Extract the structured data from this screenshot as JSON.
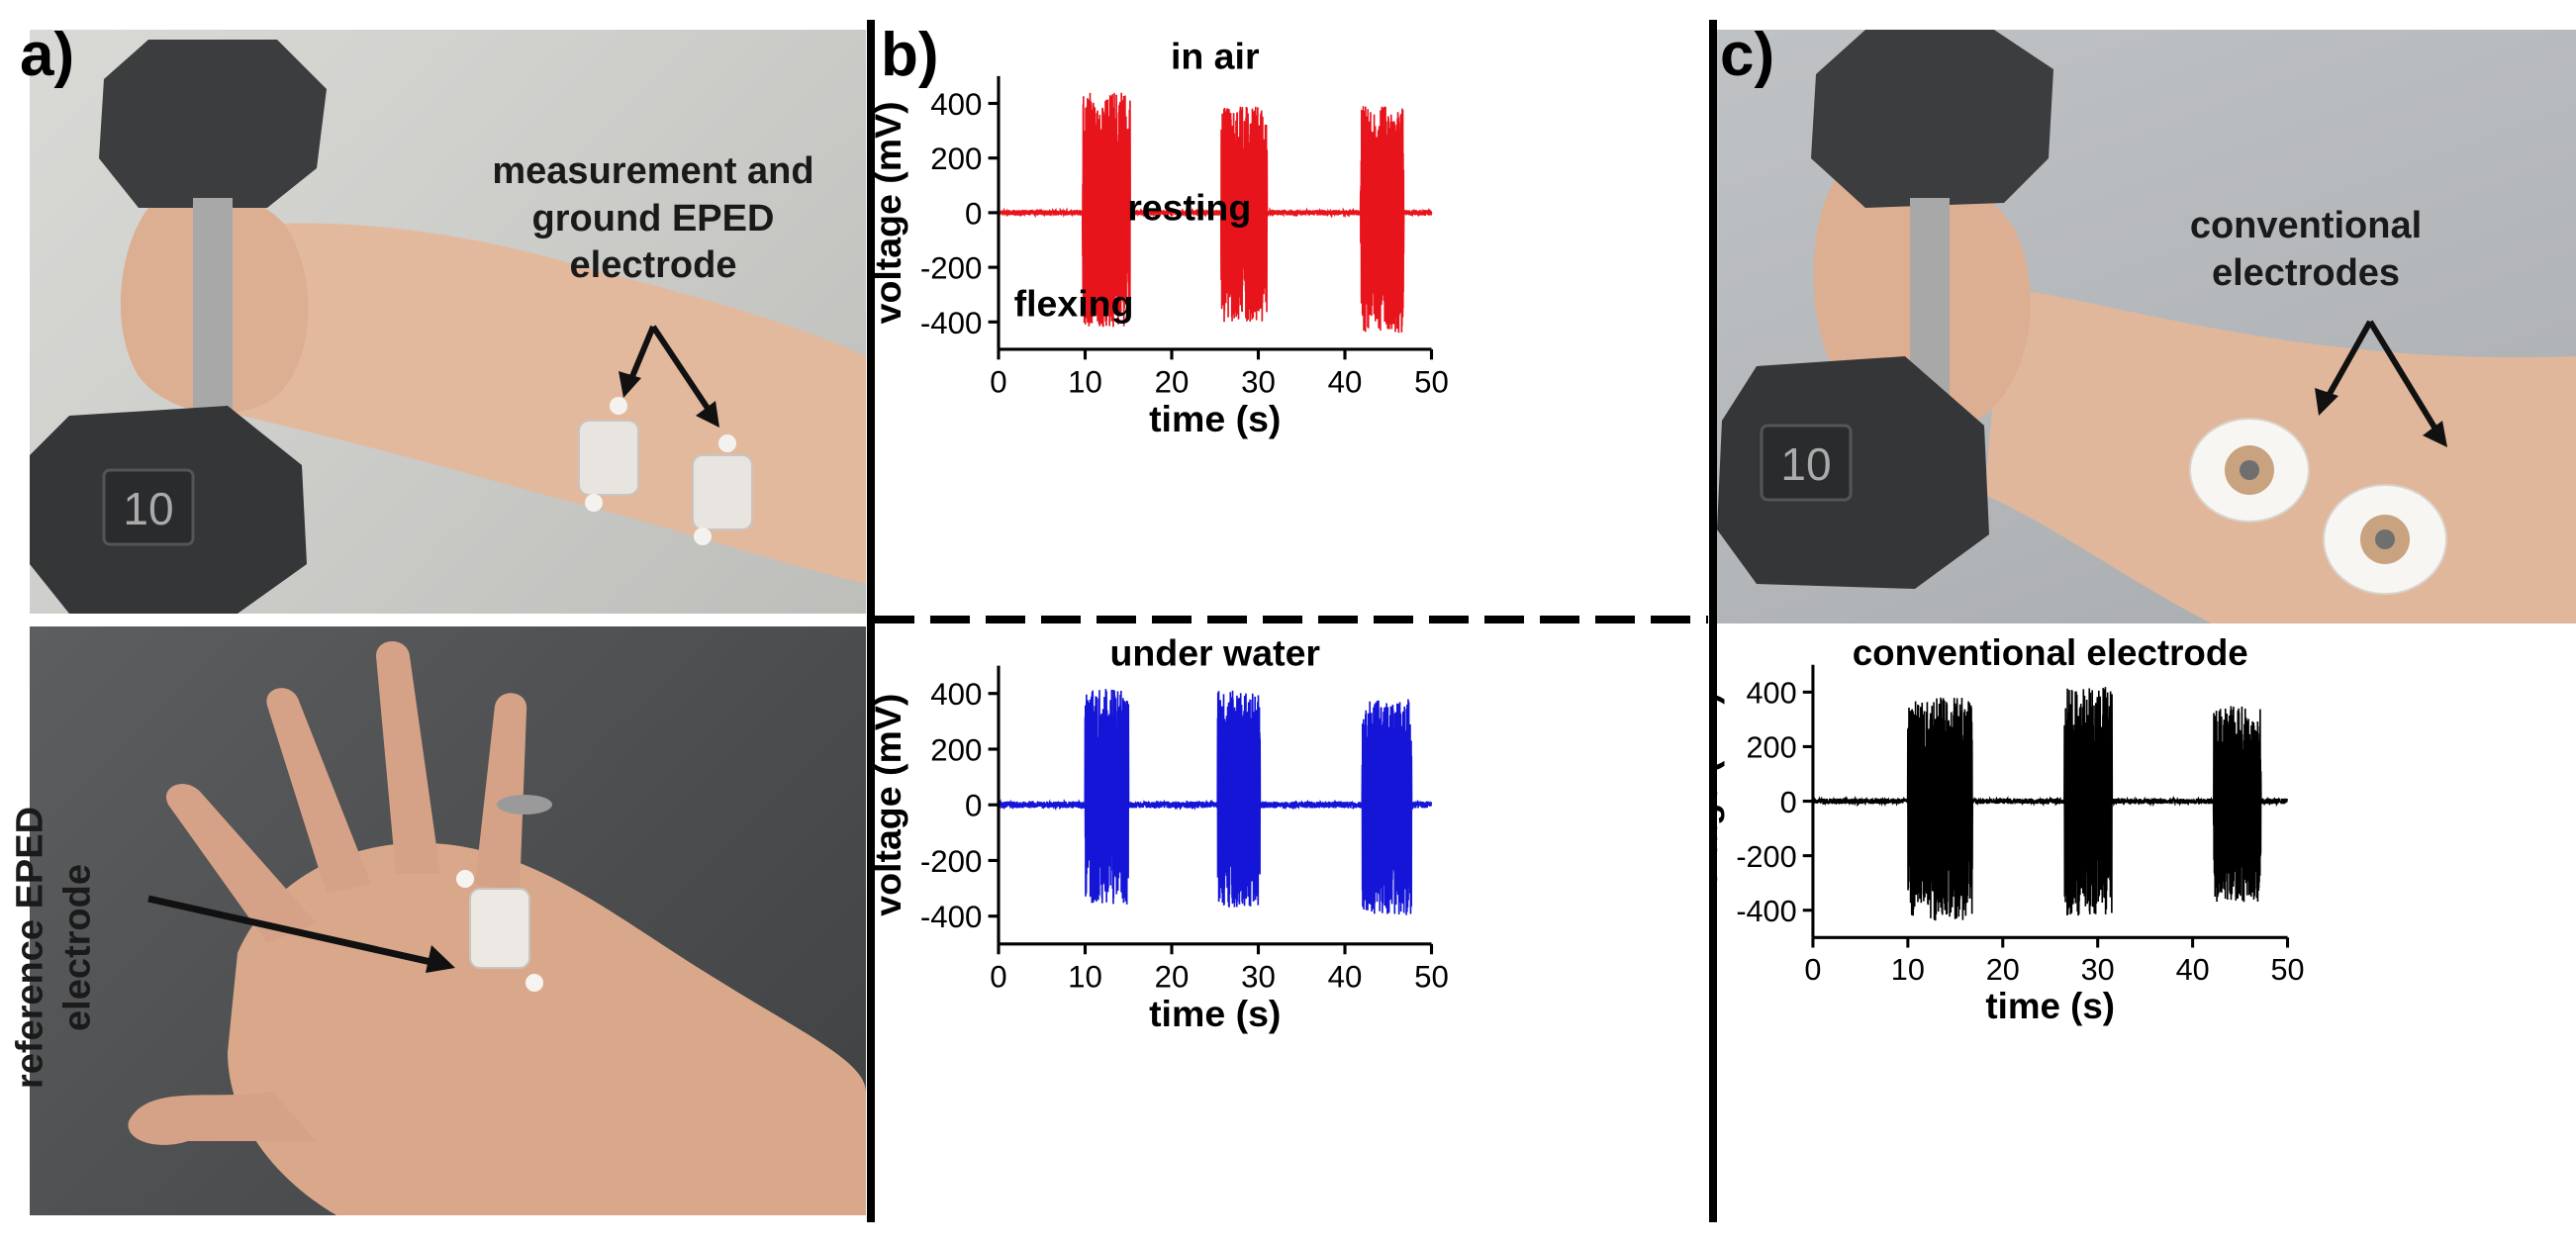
{
  "panels": {
    "a": {
      "letter": "a)",
      "annotation_top": [
        "measurement and",
        "ground EPED",
        "electrode"
      ],
      "annotation_bottom": "reference EPED electrode",
      "dumbbell_label": "10"
    },
    "b": {
      "letter": "b)"
    },
    "c": {
      "letter": "c)",
      "annotation_top": [
        "conventional",
        "electrodes"
      ],
      "dumbbell_label": "10"
    }
  },
  "chart_data": [
    {
      "type": "line",
      "title": "in air",
      "xlabel": "time (s)",
      "ylabel": "voltage (mV)",
      "xlim": [
        0,
        50
      ],
      "ylim": [
        -500,
        500
      ],
      "xticks": [
        0,
        10,
        20,
        30,
        40,
        50
      ],
      "yticks": [
        -400,
        -200,
        0,
        200,
        400
      ],
      "color": "#e8141c",
      "baseline_noise": 10,
      "bursts": [
        {
          "start": 9.7,
          "end": 15.2,
          "min": -420,
          "max": 440
        },
        {
          "start": 25.7,
          "end": 31.0,
          "min": -400,
          "max": 390
        },
        {
          "start": 41.8,
          "end": 46.8,
          "min": -440,
          "max": 390
        }
      ],
      "annotations": [
        "resting",
        "flexing"
      ]
    },
    {
      "type": "line",
      "title": "under water",
      "xlabel": "time (s)",
      "ylabel": "voltage (mV)",
      "xlim": [
        0,
        50
      ],
      "ylim": [
        -500,
        500
      ],
      "xticks": [
        0,
        10,
        20,
        30,
        40,
        50
      ],
      "yticks": [
        -400,
        -200,
        0,
        200,
        400
      ],
      "color": "#1515d8",
      "baseline_noise": 12,
      "bursts": [
        {
          "start": 10.0,
          "end": 15.0,
          "min": -360,
          "max": 420
        },
        {
          "start": 25.3,
          "end": 30.2,
          "min": -370,
          "max": 410
        },
        {
          "start": 42.0,
          "end": 47.7,
          "min": -400,
          "max": 380
        }
      ],
      "annotations": []
    },
    {
      "type": "line",
      "title": "conventional electrode",
      "xlabel": "time (s)",
      "ylabel": "voltage (mV)",
      "xlim": [
        0,
        50
      ],
      "ylim": [
        -500,
        500
      ],
      "xticks": [
        0,
        10,
        20,
        30,
        40,
        50
      ],
      "yticks": [
        -400,
        -200,
        0,
        200,
        400
      ],
      "color": "#000000",
      "baseline_noise": 10,
      "bursts": [
        {
          "start": 10.0,
          "end": 16.8,
          "min": -440,
          "max": 380
        },
        {
          "start": 26.5,
          "end": 31.5,
          "min": -420,
          "max": 420
        },
        {
          "start": 42.2,
          "end": 47.2,
          "min": -370,
          "max": 350
        }
      ],
      "annotations": []
    }
  ]
}
